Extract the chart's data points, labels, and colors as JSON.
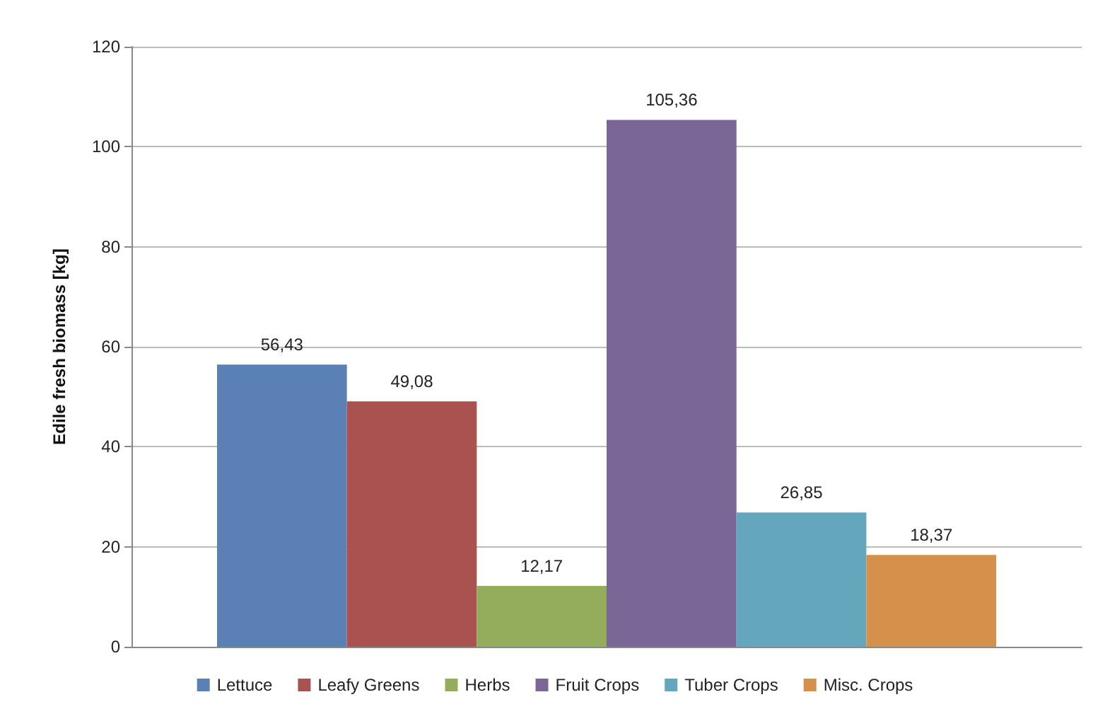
{
  "chart_data": {
    "type": "bar",
    "ylabel": "Edile fresh biomass [kg]",
    "categories": [
      null
    ],
    "series": [
      {
        "name": "Lettuce",
        "color": "#5b80b5",
        "values": [
          56.43
        ],
        "value_labels": [
          "56,43"
        ]
      },
      {
        "name": "Leafy Greens",
        "color": "#a9524f",
        "values": [
          49.08
        ],
        "value_labels": [
          "49,08"
        ]
      },
      {
        "name": "Herbs",
        "color": "#94ad5c",
        "values": [
          12.17
        ],
        "value_labels": [
          "12,17"
        ]
      },
      {
        "name": "Fruit Crops",
        "color": "#7b6698",
        "values": [
          105.36
        ],
        "value_labels": [
          "105,36"
        ]
      },
      {
        "name": "Tuber Crops",
        "color": "#64a6bb",
        "values": [
          26.85
        ],
        "value_labels": [
          "26,85"
        ]
      },
      {
        "name": "Misc. Crops",
        "color": "#d5914b",
        "values": [
          18.37
        ],
        "value_labels": [
          "18,37"
        ]
      }
    ],
    "ylim": [
      0,
      120
    ],
    "yticks": [
      0,
      20,
      40,
      60,
      80,
      100,
      120
    ],
    "grid": "y",
    "legend": "bottom"
  }
}
